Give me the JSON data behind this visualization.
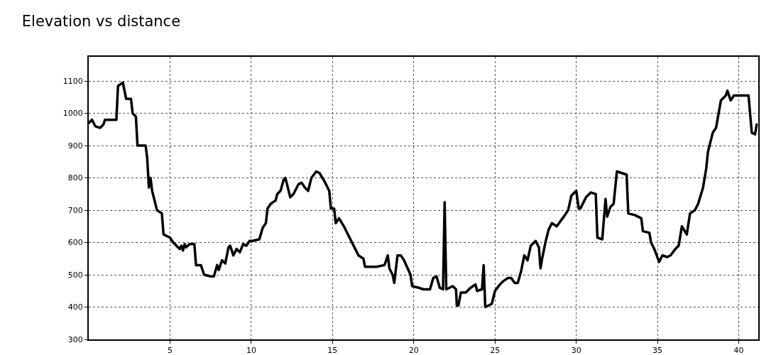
{
  "chart_data": {
    "type": "line",
    "title": "Elevation vs distance",
    "x": [
      0,
      0.2,
      0.4,
      0.7,
      0.9,
      1.0,
      1.7,
      1.8,
      2.1,
      2.3,
      2.6,
      2.7,
      2.9,
      3.0,
      3.5,
      3.6,
      3.7,
      3.8,
      3.9,
      4.1,
      4.2,
      4.5,
      4.6,
      5.0,
      5.2,
      5.6,
      5.7,
      5.8,
      5.9,
      6.0,
      6.2,
      6.5,
      6.6,
      6.9,
      7.1,
      7.5,
      7.7,
      7.9,
      8.0,
      8.2,
      8.4,
      8.6,
      8.7,
      8.9,
      9.1,
      9.3,
      9.5,
      9.7,
      9.9,
      10.1,
      10.5,
      10.7,
      10.9,
      11.0,
      11.2,
      11.5,
      11.6,
      11.8,
      12.0,
      12.1,
      12.4,
      12.6,
      12.9,
      13.1,
      13.3,
      13.5,
      13.7,
      14.0,
      14.2,
      14.5,
      14.8,
      14.9,
      15.1,
      15.2,
      15.4,
      15.7,
      16.0,
      16.2,
      16.3,
      16.6,
      16.9,
      17.0,
      17.7,
      18.2,
      18.4,
      18.5,
      18.7,
      18.8,
      19.0,
      19.2,
      19.4,
      19.8,
      19.9,
      20.3,
      20.6,
      21.0,
      21.2,
      21.4,
      21.6,
      21.8,
      21.9,
      22.0,
      22.2,
      22.4,
      22.6,
      22.65,
      22.75,
      22.9,
      23.2,
      23.5,
      23.8,
      23.9,
      24.2,
      24.3,
      24.4,
      24.8,
      25.0,
      25.3,
      25.5,
      25.8,
      26.0,
      26.2,
      26.4,
      26.6,
      26.8,
      27.0,
      27.2,
      27.5,
      27.7,
      27.8,
      27.9,
      28.1,
      28.3,
      28.5,
      28.8,
      29.3,
      29.5,
      29.7,
      29.9,
      30.0,
      30.15,
      30.25,
      30.4,
      30.6,
      30.9,
      31.2,
      31.3,
      31.6,
      31.8,
      31.9,
      32.1,
      32.3,
      32.5,
      32.8,
      33.1,
      33.2,
      33.6,
      34.0,
      34.1,
      34.5,
      34.6,
      34.8,
      35.1,
      35.3,
      35.6,
      35.8,
      36.1,
      36.3,
      36.5,
      36.8,
      37.0,
      37.3,
      37.5,
      37.8,
      38.0,
      38.1,
      38.4,
      38.6,
      38.9,
      39.2,
      39.3,
      39.5,
      39.7,
      40.0,
      40.6,
      40.8,
      41.0,
      41.1
    ],
    "series": [
      {
        "color": "#000000",
        "values": [
          970,
          980,
          960,
          955,
          965,
          980,
          980,
          1085,
          1095,
          1045,
          1045,
          1000,
          990,
          900,
          900,
          860,
          770,
          800,
          760,
          720,
          700,
          690,
          625,
          615,
          600,
          580,
          590,
          575,
          595,
          585,
          595,
          595,
          530,
          530,
          500,
          495,
          495,
          530,
          515,
          545,
          535,
          585,
          590,
          560,
          580,
          570,
          595,
          590,
          605,
          605,
          610,
          645,
          660,
          705,
          720,
          730,
          750,
          760,
          795,
          800,
          740,
          750,
          780,
          785,
          770,
          760,
          800,
          820,
          815,
          790,
          760,
          705,
          705,
          660,
          675,
          650,
          620,
          600,
          590,
          560,
          550,
          525,
          525,
          530,
          560,
          520,
          500,
          475,
          560,
          560,
          545,
          500,
          465,
          460,
          455,
          455,
          490,
          495,
          460,
          455,
          725,
          455,
          460,
          465,
          455,
          405,
          405,
          445,
          445,
          460,
          470,
          450,
          455,
          530,
          400,
          410,
          450,
          470,
          480,
          490,
          490,
          475,
          475,
          510,
          560,
          545,
          590,
          605,
          585,
          520,
          550,
          600,
          640,
          660,
          650,
          685,
          700,
          745,
          755,
          760,
          705,
          705,
          720,
          740,
          755,
          750,
          615,
          610,
          735,
          680,
          710,
          720,
          820,
          815,
          810,
          690,
          685,
          675,
          635,
          630,
          600,
          580,
          540,
          560,
          555,
          560,
          580,
          590,
          650,
          625,
          690,
          700,
          720,
          770,
          830,
          880,
          940,
          955,
          1040,
          1055,
          1070,
          1040,
          1055,
          1055,
          1055,
          940,
          935,
          965
        ]
      }
    ],
    "xlim": [
      0,
      41.2
    ],
    "xticks": [
      5,
      10,
      15,
      20,
      25,
      30,
      35,
      40
    ],
    "ylim": [
      300,
      1175
    ],
    "yticks": [
      300,
      400,
      500,
      600,
      700,
      800,
      900,
      1000,
      1100
    ],
    "grid": true,
    "marker": "none",
    "line_style": "solid"
  }
}
